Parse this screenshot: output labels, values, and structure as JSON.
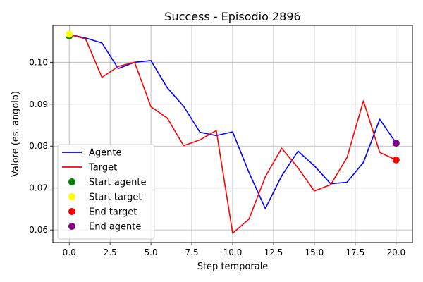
{
  "chart_data": {
    "type": "line",
    "title": "Success - Episodio 2896",
    "xlabel": "Step temporale",
    "ylabel": "Valore (es. angolo)",
    "xlim": [
      -1,
      21
    ],
    "ylim": [
      0.057,
      0.1088
    ],
    "xticks": [
      0,
      2.5,
      5,
      7.5,
      10,
      12.5,
      15,
      17.5,
      20
    ],
    "xtick_labels": [
      "0.0",
      "2.5",
      "5.0",
      "7.5",
      "10.0",
      "12.5",
      "15.0",
      "17.5",
      "20.0"
    ],
    "yticks": [
      0.06,
      0.07,
      0.08,
      0.09,
      0.1
    ],
    "ytick_labels": [
      "0.06",
      "0.07",
      "0.08",
      "0.09",
      "0.10"
    ],
    "grid": true,
    "legend_position": "lower-left",
    "x": [
      0,
      1,
      2,
      3,
      4,
      5,
      6,
      7,
      8,
      9,
      10,
      11,
      12,
      13,
      14,
      15,
      16,
      17,
      18,
      19,
      20
    ],
    "series": [
      {
        "name": "Agente",
        "color": "#0000ff",
        "values": [
          0.1066,
          0.1058,
          0.1046,
          0.0985,
          0.1,
          0.1004,
          0.0939,
          0.0895,
          0.0833,
          0.0825,
          0.0834,
          0.0737,
          0.0651,
          0.0729,
          0.0788,
          0.0753,
          0.071,
          0.0714,
          0.0761,
          0.0864,
          0.0807
        ]
      },
      {
        "name": "Target",
        "color": "#ff0000",
        "values": [
          0.1066,
          0.1056,
          0.0964,
          0.099,
          0.1,
          0.0894,
          0.0867,
          0.0801,
          0.0815,
          0.0837,
          0.0592,
          0.0626,
          0.0727,
          0.0795,
          0.0748,
          0.0693,
          0.0708,
          0.0773,
          0.0908,
          0.0785,
          0.0767
        ]
      }
    ],
    "markers": [
      {
        "name": "Start agente",
        "color": "#008000",
        "x": 0,
        "y": 0.1063
      },
      {
        "name": "Start target",
        "color": "#ffff00",
        "x": 0,
        "y": 0.1067
      },
      {
        "name": "End target",
        "color": "#ff0000",
        "x": 20,
        "y": 0.0767
      },
      {
        "name": "End agente",
        "color": "#800080",
        "x": 20,
        "y": 0.0807
      }
    ]
  }
}
